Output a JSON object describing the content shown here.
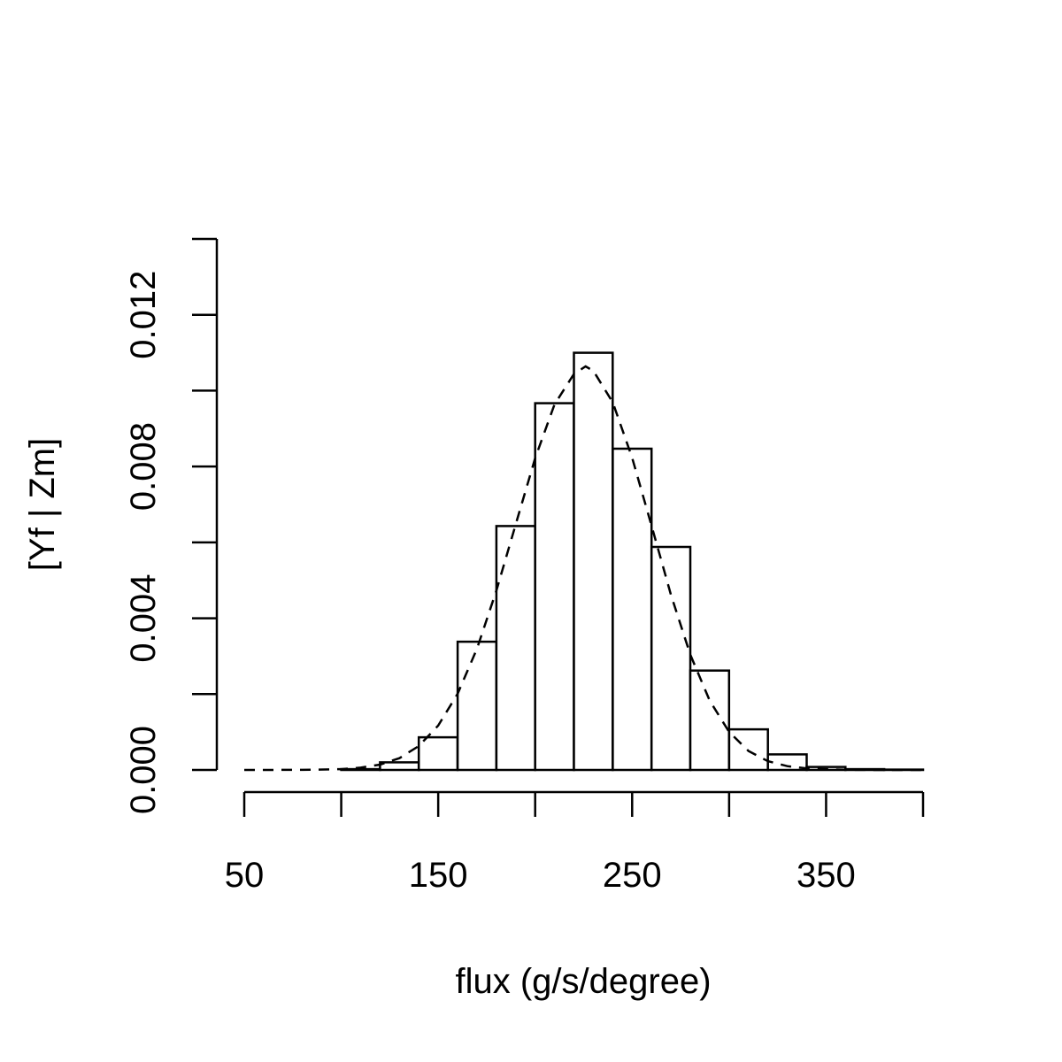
{
  "chart_data": {
    "type": "bar",
    "subtype": "histogram-with-density-curve",
    "title": "",
    "xlabel": "flux (g/s/degree)",
    "ylabel": "[Yf | Zm]",
    "xlim": [
      50,
      400
    ],
    "ylim": [
      0,
      0.014
    ],
    "x_ticks": [
      50,
      100,
      150,
      200,
      250,
      300,
      350,
      400
    ],
    "x_tick_labels": [
      "50",
      "",
      "150",
      "",
      "250",
      "",
      "350",
      ""
    ],
    "y_ticks": [
      0,
      0.002,
      0.004,
      0.006,
      0.008,
      0.01,
      0.012,
      0.014
    ],
    "y_tick_labels": [
      "0.000",
      "",
      "0.004",
      "",
      "0.008",
      "",
      "0.012",
      ""
    ],
    "grid": false,
    "bins": [
      {
        "x0": 100,
        "x1": 120,
        "value": 2e-05
      },
      {
        "x0": 120,
        "x1": 140,
        "value": 0.0002
      },
      {
        "x0": 140,
        "x1": 160,
        "value": 0.00086
      },
      {
        "x0": 160,
        "x1": 180,
        "value": 0.00338
      },
      {
        "x0": 180,
        "x1": 200,
        "value": 0.00643
      },
      {
        "x0": 200,
        "x1": 220,
        "value": 0.00967
      },
      {
        "x0": 220,
        "x1": 240,
        "value": 0.011
      },
      {
        "x0": 240,
        "x1": 260,
        "value": 0.00847
      },
      {
        "x0": 260,
        "x1": 280,
        "value": 0.00588
      },
      {
        "x0": 280,
        "x1": 300,
        "value": 0.00262
      },
      {
        "x0": 300,
        "x1": 320,
        "value": 0.00107
      },
      {
        "x0": 320,
        "x1": 340,
        "value": 0.00041
      },
      {
        "x0": 340,
        "x1": 360,
        "value": 8e-05
      },
      {
        "x0": 360,
        "x1": 380,
        "value": 2e-05
      },
      {
        "x0": 380,
        "x1": 400,
        "value": 1e-05
      }
    ],
    "density_curve": {
      "style": "dashed",
      "x": [
        50,
        80,
        100,
        110,
        120,
        130,
        140,
        150,
        160,
        170,
        180,
        190,
        200,
        210,
        220,
        226,
        230,
        240,
        250,
        260,
        270,
        280,
        290,
        300,
        310,
        320,
        330,
        340,
        360,
        380,
        400
      ],
      "y": [
        0,
        2e-06,
        2e-05,
        6e-05,
        0.00014,
        0.00031,
        0.00063,
        0.00117,
        0.00201,
        0.0032,
        0.00473,
        0.00648,
        0.00822,
        0.00964,
        0.01044,
        0.01064,
        0.01052,
        0.00969,
        0.00823,
        0.00644,
        0.00462,
        0.00304,
        0.00183,
        0.001,
        0.0005,
        0.00023,
        0.0001,
        4e-05,
        4e-06,
        0,
        0
      ]
    }
  }
}
